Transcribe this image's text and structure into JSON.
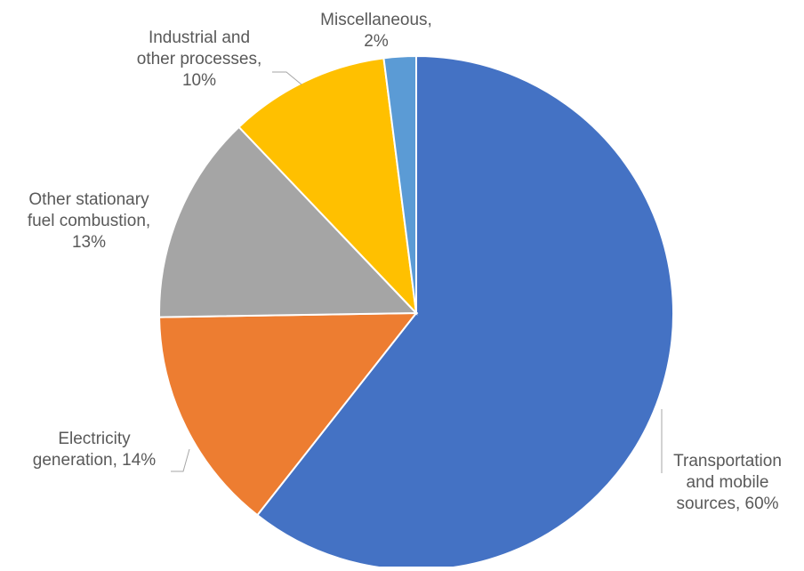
{
  "chart_data": {
    "type": "pie",
    "title": "",
    "slices": [
      {
        "label_lines": [
          "Transportation",
          "and mobile",
          "sources, 60%"
        ],
        "category": "Transportation and mobile sources",
        "value": 60,
        "color": "#4472C4"
      },
      {
        "label_lines": [
          "Electricity",
          "generation, 14%"
        ],
        "category": "Electricity generation",
        "value": 14,
        "color": "#ED7D31"
      },
      {
        "label_lines": [
          "Other stationary",
          "fuel combustion,",
          "13%"
        ],
        "category": "Other stationary fuel combustion",
        "value": 13,
        "color": "#A5A5A5"
      },
      {
        "label_lines": [
          "Industrial and",
          "other processes,",
          "10%"
        ],
        "category": "Industrial and other processes",
        "value": 10,
        "color": "#FFC000"
      },
      {
        "label_lines": [
          "Miscellaneous,",
          "2%"
        ],
        "category": "Miscellaneous",
        "value": 2,
        "color": "#5B9BD5"
      }
    ],
    "legend": "none",
    "labels": "outside with leader lines"
  }
}
